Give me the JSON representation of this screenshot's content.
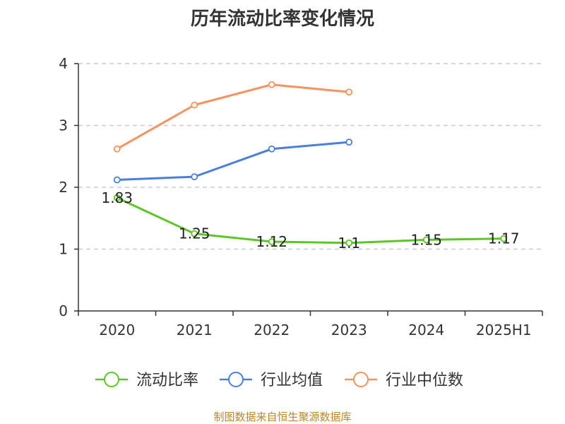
{
  "chart_data": {
    "type": "line",
    "title": "历年流动比率变化情况",
    "categories": [
      "2020",
      "2021",
      "2022",
      "2023",
      "2024",
      "2025H1"
    ],
    "ylim": [
      0,
      4
    ],
    "yticks": [
      "0",
      "1",
      "2",
      "3",
      "4"
    ],
    "grid": "horizontal-dashed",
    "legend_position": "bottom",
    "series": [
      {
        "name": "流动比率",
        "color": "#5cc628",
        "values": [
          1.83,
          1.25,
          1.12,
          1.1,
          1.15,
          1.17
        ],
        "labels": [
          "1.83",
          "1.25",
          "1.12",
          "1.1",
          "1.15",
          "1.17"
        ],
        "show_labels": true
      },
      {
        "name": "行业均值",
        "color": "#4a7fdb",
        "values": [
          2.12,
          2.17,
          2.62,
          2.73,
          null,
          null
        ],
        "show_labels": false
      },
      {
        "name": "行业中位数",
        "color": "#f59360",
        "values": [
          2.62,
          3.33,
          3.66,
          3.54,
          null,
          null
        ],
        "show_labels": false
      }
    ]
  },
  "source_note": "制图数据来自恒生聚源数据库",
  "source_note_color": "#b8862b",
  "axis_color": "#333333",
  "grid_color": "#cccccc"
}
